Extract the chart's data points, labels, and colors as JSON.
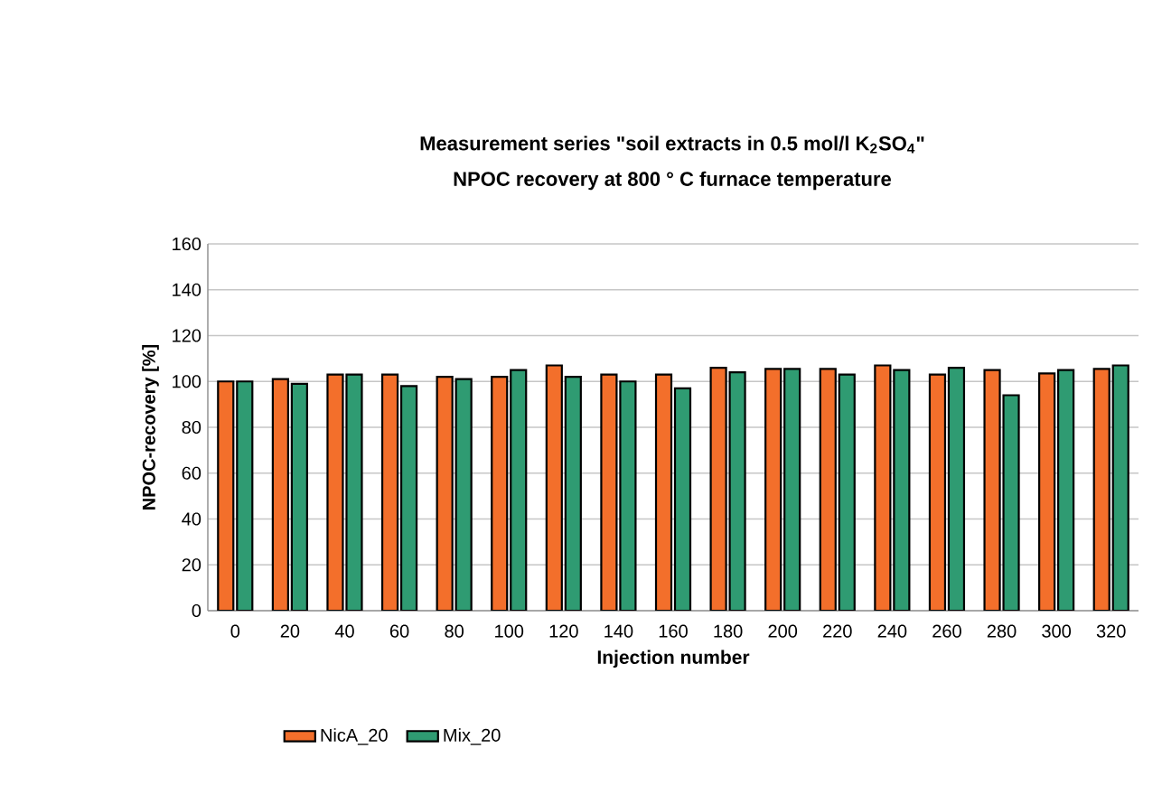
{
  "chart_data": {
    "type": "bar",
    "title": "Measurement series \"soil extracts in 0.5 mol/l K$_{2}$SO$_{4}$\"",
    "subtitle": "NPOC recovery at 800 ° C furnace temperature",
    "xlabel": "Injection number",
    "ylabel": "NPOC-recovery [%]",
    "categories": [
      "0",
      "20",
      "40",
      "60",
      "80",
      "100",
      "120",
      "140",
      "160",
      "180",
      "200",
      "220",
      "240",
      "260",
      "280",
      "300",
      "320"
    ],
    "series": [
      {
        "name": "NicA_20",
        "color": "#f36f2b",
        "values": [
          100,
          101,
          103,
          103,
          102,
          102,
          107,
          103,
          103,
          106,
          105.5,
          105.5,
          107,
          103,
          105,
          103.5,
          105.5
        ]
      },
      {
        "name": "Mix_20",
        "color": "#2f9b72",
        "values": [
          100,
          99,
          103,
          98,
          101,
          105,
          102,
          100,
          97,
          104,
          105.5,
          103,
          105,
          106,
          94,
          105,
          107
        ]
      }
    ],
    "ylim": [
      0,
      160
    ],
    "yticks": [
      0,
      20,
      40,
      60,
      80,
      100,
      120,
      140,
      160
    ],
    "grid": "y",
    "legend": "bottom"
  }
}
